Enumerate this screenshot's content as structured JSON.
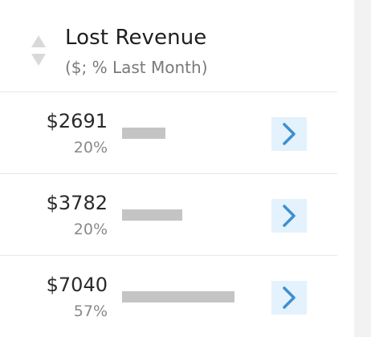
{
  "header": {
    "title": "Lost Revenue",
    "subtitle": "($; % Last Month)"
  },
  "colors": {
    "bar": "#c4c4c4",
    "button_bg": "#e3f2fc",
    "chevron": "#3d8fcf",
    "sort_arrows": "#d9d9d9"
  },
  "icons": {
    "sort": "sort-up-down-icon",
    "go": "chevron-right-icon"
  },
  "rows": [
    {
      "amount": "$2691",
      "percent": "20%",
      "value": 2691
    },
    {
      "amount": "$3782",
      "percent": "20%",
      "value": 3782
    },
    {
      "amount": "$7040",
      "percent": "57%",
      "value": 7040
    }
  ]
}
